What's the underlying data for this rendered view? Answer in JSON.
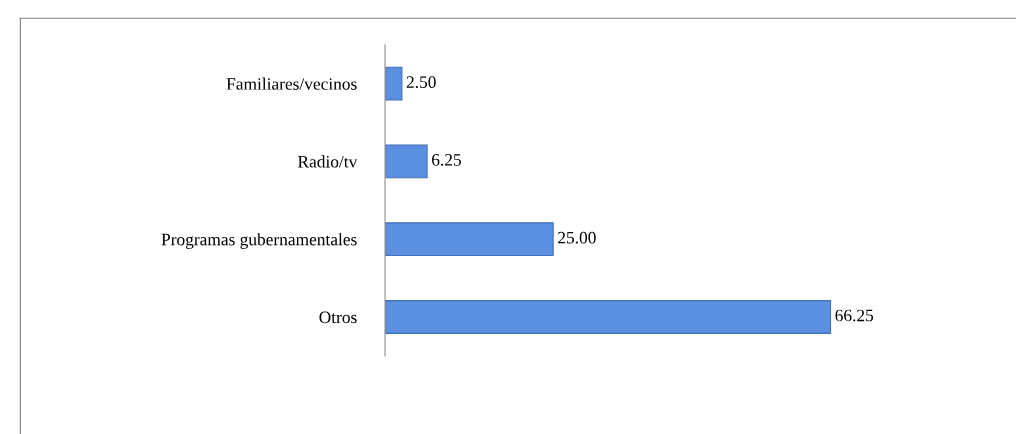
{
  "chart_data": {
    "type": "bar",
    "orientation": "horizontal",
    "categories": [
      "Familiares/vecinos",
      "Radio/tv",
      "Programas gubernamentales",
      "Otros"
    ],
    "values": [
      2.5,
      6.25,
      25.0,
      66.25
    ],
    "color": "#5b8fe0",
    "value_labels": [
      "2.50",
      "6.25",
      "25.00",
      "66.25"
    ],
    "grid": false,
    "legend": false
  }
}
